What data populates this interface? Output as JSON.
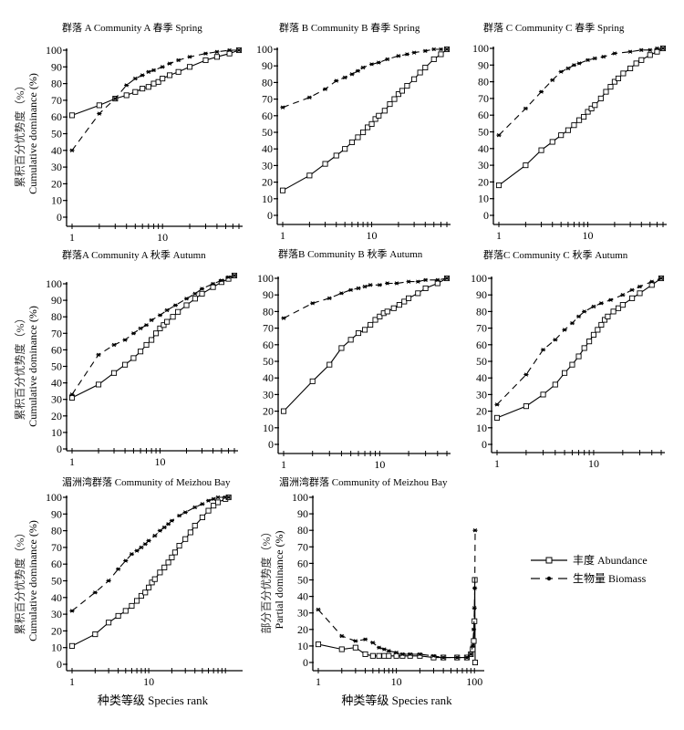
{
  "figure": {
    "xaxis_label": "种类等级  Species rank",
    "ylabel_cumulative_cn": "累积百分优势度（%）",
    "ylabel_cumulative_en": "Cumulative dominance (%)",
    "ylabel_partial_cn": "部分百分优势度（%）",
    "ylabel_partial_en": "Partial dominance (%)"
  },
  "legend": {
    "position": "right-of-bottom-panels",
    "items": [
      {
        "key": "abundance",
        "label": "丰度  Abundance",
        "style": "solid",
        "marker": "open-square"
      },
      {
        "key": "biomass",
        "label": "生物量  Biomass",
        "style": "dashed",
        "marker": "star"
      }
    ]
  },
  "chart_data": [
    {
      "id": "A-spring",
      "type": "line",
      "title": "群落 A Community A  春季    Spring",
      "xscale": "log",
      "xlim": [
        1,
        70
      ],
      "ylim": [
        0,
        100
      ],
      "yticks": [
        0,
        10,
        20,
        30,
        40,
        50,
        60,
        70,
        80,
        90,
        100
      ],
      "xtick_labels": [
        "1",
        "10"
      ],
      "series": [
        {
          "name": "Abundance",
          "x": [
            1,
            2,
            3,
            4,
            5,
            6,
            7,
            8,
            9,
            10,
            12,
            15,
            20,
            30,
            40,
            55,
            70
          ],
          "y": [
            61,
            67,
            71,
            73,
            75,
            77,
            78,
            80,
            81,
            83,
            85,
            87,
            90,
            94,
            96,
            98,
            100
          ]
        },
        {
          "name": "Biomass",
          "x": [
            1,
            2,
            3,
            4,
            5,
            6,
            7,
            8,
            10,
            12,
            15,
            20,
            30,
            40,
            55,
            70
          ],
          "y": [
            40,
            62,
            71,
            79,
            83,
            85,
            87,
            88,
            90,
            92,
            94,
            96,
            98,
            99,
            100,
            100
          ]
        }
      ]
    },
    {
      "id": "B-spring",
      "type": "line",
      "title": "群落 B  Community B  春季    Spring",
      "xscale": "log",
      "xlim": [
        1,
        70
      ],
      "ylim": [
        0,
        100
      ],
      "yticks": [
        0,
        10,
        20,
        30,
        40,
        50,
        60,
        70,
        80,
        90,
        100
      ],
      "xtick_labels": [
        "1",
        "10"
      ],
      "series": [
        {
          "name": "Abundance",
          "x": [
            1,
            2,
            3,
            4,
            5,
            6,
            7,
            8,
            9,
            10,
            11,
            12,
            14,
            16,
            18,
            20,
            22,
            25,
            30,
            35,
            40,
            50,
            60,
            70
          ],
          "y": [
            15,
            24,
            31,
            36,
            40,
            44,
            47,
            50,
            53,
            55,
            58,
            60,
            63,
            67,
            70,
            73,
            75,
            78,
            82,
            86,
            89,
            94,
            97,
            100
          ]
        },
        {
          "name": "Biomass",
          "x": [
            1,
            2,
            3,
            4,
            5,
            6,
            7,
            8,
            10,
            12,
            15,
            20,
            25,
            30,
            40,
            50,
            60,
            70
          ],
          "y": [
            65,
            71,
            76,
            81,
            83,
            85,
            87,
            89,
            91,
            92,
            94,
            96,
            97,
            98,
            99,
            100,
            100,
            100
          ]
        }
      ]
    },
    {
      "id": "C-spring",
      "type": "line",
      "title": "群落 C  Community C  春季    Spring",
      "xscale": "log",
      "xlim": [
        1,
        70
      ],
      "ylim": [
        0,
        100
      ],
      "yticks": [
        0,
        10,
        20,
        30,
        40,
        50,
        60,
        70,
        80,
        90,
        100
      ],
      "xtick_labels": [
        "1",
        "10"
      ],
      "series": [
        {
          "name": "Abundance",
          "x": [
            1,
            2,
            3,
            4,
            5,
            6,
            7,
            8,
            9,
            10,
            11,
            12,
            14,
            16,
            18,
            20,
            22,
            25,
            30,
            35,
            40,
            50,
            60,
            70
          ],
          "y": [
            18,
            30,
            39,
            44,
            48,
            51,
            54,
            57,
            59,
            62,
            64,
            66,
            70,
            74,
            77,
            80,
            82,
            85,
            88,
            91,
            93,
            96,
            98,
            100
          ]
        },
        {
          "name": "Biomass",
          "x": [
            1,
            2,
            3,
            4,
            5,
            6,
            7,
            8,
            10,
            12,
            15,
            20,
            30,
            40,
            50,
            60,
            70
          ],
          "y": [
            48,
            64,
            74,
            81,
            86,
            88,
            90,
            91,
            93,
            94,
            95,
            97,
            98,
            99,
            99,
            100,
            100
          ]
        }
      ]
    },
    {
      "id": "A-autumn",
      "type": "line",
      "title": "群落A Community A  秋季    Autumn",
      "xscale": "log",
      "xlim": [
        1,
        70
      ],
      "ylim": [
        0,
        100
      ],
      "yticks": [
        0,
        10,
        20,
        30,
        40,
        50,
        60,
        70,
        80,
        90,
        100
      ],
      "xtick_labels": [
        "1",
        "10"
      ],
      "series": [
        {
          "name": "Abundance",
          "x": [
            1,
            2,
            3,
            4,
            5,
            6,
            7,
            8,
            9,
            10,
            11,
            12,
            14,
            16,
            20,
            25,
            30,
            40,
            50,
            60,
            70
          ],
          "y": [
            31,
            39,
            46,
            51,
            55,
            59,
            63,
            66,
            70,
            73,
            75,
            77,
            80,
            83,
            87,
            91,
            94,
            98,
            101,
            103,
            105
          ]
        },
        {
          "name": "Biomass",
          "x": [
            1,
            2,
            3,
            4,
            5,
            6,
            7,
            8,
            10,
            12,
            15,
            20,
            25,
            30,
            40,
            50,
            60,
            70
          ],
          "y": [
            33,
            57,
            63,
            66,
            70,
            73,
            75,
            78,
            81,
            84,
            87,
            91,
            94,
            97,
            100,
            102,
            104,
            105
          ]
        }
      ]
    },
    {
      "id": "B-autumn",
      "type": "line",
      "title": "群落B Community B    秋季    Autumn",
      "xscale": "log",
      "xlim": [
        1,
        50
      ],
      "ylim": [
        0,
        100
      ],
      "yticks": [
        0,
        10,
        20,
        30,
        40,
        50,
        60,
        70,
        80,
        90,
        100
      ],
      "xtick_labels": [
        "1",
        "10"
      ],
      "series": [
        {
          "name": "Abundance",
          "x": [
            1,
            2,
            3,
            4,
            5,
            6,
            7,
            8,
            9,
            10,
            11,
            12,
            14,
            16,
            18,
            20,
            25,
            30,
            40,
            50
          ],
          "y": [
            20,
            38,
            48,
            58,
            63,
            67,
            69,
            72,
            75,
            77,
            79,
            80,
            82,
            84,
            86,
            88,
            91,
            94,
            97,
            100
          ]
        },
        {
          "name": "Biomass",
          "x": [
            1,
            2,
            3,
            4,
            5,
            6,
            7,
            8,
            10,
            12,
            15,
            20,
            25,
            30,
            40,
            50
          ],
          "y": [
            76,
            85,
            88,
            91,
            93,
            94,
            95,
            96,
            96,
            97,
            97,
            98,
            98,
            99,
            99,
            100
          ]
        }
      ]
    },
    {
      "id": "C-autumn",
      "type": "line",
      "title": "群落C Community C    秋季    Autumn",
      "xscale": "log",
      "xlim": [
        1,
        50
      ],
      "ylim": [
        0,
        100
      ],
      "yticks": [
        0,
        10,
        20,
        30,
        40,
        50,
        60,
        70,
        80,
        90,
        100
      ],
      "xtick_labels": [
        "1",
        "10"
      ],
      "series": [
        {
          "name": "Abundance",
          "x": [
            1,
            2,
            3,
            4,
            5,
            6,
            7,
            8,
            9,
            10,
            11,
            12,
            13,
            14,
            16,
            18,
            20,
            25,
            30,
            40,
            50
          ],
          "y": [
            16,
            23,
            30,
            36,
            43,
            48,
            53,
            58,
            62,
            66,
            69,
            72,
            75,
            77,
            80,
            82,
            84,
            88,
            91,
            96,
            100
          ]
        },
        {
          "name": "Biomass",
          "x": [
            1,
            2,
            3,
            4,
            5,
            6,
            7,
            8,
            10,
            12,
            15,
            20,
            25,
            30,
            40,
            50
          ],
          "y": [
            24,
            42,
            57,
            63,
            69,
            73,
            77,
            80,
            83,
            85,
            87,
            90,
            93,
            95,
            98,
            100
          ]
        }
      ]
    },
    {
      "id": "Meizhou-cumulative",
      "type": "line",
      "title": "湄洲湾群落 Community of Meizhou Bay",
      "xscale": "log",
      "xlim": [
        1,
        150
      ],
      "ylim": [
        0,
        100
      ],
      "yticks": [
        0,
        10,
        20,
        30,
        40,
        50,
        60,
        70,
        80,
        90,
        100
      ],
      "xtick_labels": [
        "1",
        "10"
      ],
      "series": [
        {
          "name": "Abundance",
          "x": [
            1,
            2,
            3,
            4,
            5,
            6,
            7,
            8,
            9,
            10,
            11,
            12,
            14,
            16,
            18,
            20,
            22,
            25,
            30,
            35,
            40,
            50,
            60,
            70,
            80,
            100,
            110
          ],
          "y": [
            11,
            18,
            25,
            29,
            32,
            35,
            38,
            41,
            43,
            46,
            49,
            51,
            55,
            58,
            61,
            64,
            67,
            71,
            75,
            79,
            83,
            88,
            92,
            95,
            97,
            99,
            100
          ]
        },
        {
          "name": "Biomass",
          "x": [
            1,
            2,
            3,
            4,
            5,
            6,
            7,
            8,
            9,
            10,
            12,
            14,
            16,
            18,
            20,
            25,
            30,
            40,
            50,
            60,
            70,
            80,
            100,
            110
          ],
          "y": [
            32,
            43,
            50,
            57,
            62,
            66,
            68,
            70,
            72,
            74,
            77,
            80,
            82,
            84,
            86,
            89,
            91,
            94,
            96,
            98,
            99,
            100,
            100,
            100
          ]
        }
      ]
    },
    {
      "id": "Meizhou-partial",
      "type": "line",
      "title": "湄洲湾群落 Community of Meizhou Bay",
      "xscale": "log",
      "xlim": [
        1,
        120
      ],
      "ylim": [
        0,
        100
      ],
      "yticks": [
        0,
        10,
        20,
        30,
        40,
        50,
        60,
        70,
        80,
        90,
        100
      ],
      "xtick_labels": [
        "1",
        "10",
        "100"
      ],
      "series": [
        {
          "name": "Abundance",
          "x": [
            1,
            2,
            3,
            4,
            5,
            6,
            7,
            8,
            10,
            12,
            15,
            20,
            30,
            40,
            60,
            80,
            90,
            95,
            98,
            100,
            101,
            102
          ],
          "y": [
            11,
            8,
            9,
            5,
            4,
            4,
            4,
            4,
            4,
            4,
            4,
            4,
            3,
            3,
            3,
            3,
            5,
            8,
            13,
            25,
            50,
            0
          ]
        },
        {
          "name": "Biomass",
          "x": [
            1,
            2,
            3,
            4,
            5,
            6,
            7,
            8,
            10,
            12,
            15,
            20,
            30,
            40,
            60,
            80,
            90,
            95,
            98,
            100,
            101,
            102
          ],
          "y": [
            32,
            16,
            13,
            14,
            12,
            9,
            8,
            7,
            6,
            5,
            5,
            5,
            4,
            3,
            3,
            3,
            5,
            10,
            20,
            33,
            45,
            80
          ]
        }
      ]
    }
  ]
}
